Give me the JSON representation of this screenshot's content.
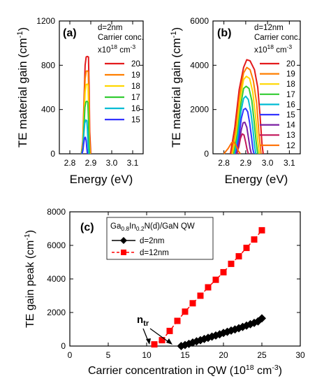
{
  "chart_data": [
    {
      "panel": "(a)",
      "type": "line",
      "xlabel": "Energy (eV)",
      "ylabel": "TE material gain (cm-1)",
      "ylabel_main": "TE material gain (cm",
      "ylabel_sup": "-1",
      "ylabel_close": ")",
      "xlim": [
        2.75,
        3.15
      ],
      "ylim": [
        0,
        1200
      ],
      "xticks": [
        "2.8",
        "2.9",
        "3.0",
        "3.1"
      ],
      "yticks": [
        "0",
        "400",
        "800",
        "1200"
      ],
      "annotation": {
        "line1": "d=2nm",
        "line2": "Carrier conc.",
        "line3_base": "x10",
        "line3_exp1": "18",
        "line3_mid": " cm",
        "line3_exp2": "-3"
      },
      "series": [
        {
          "name": "20",
          "color": "#e31a1c",
          "x": [
            2.855,
            2.862,
            2.868,
            2.873,
            2.878,
            2.883,
            2.889,
            2.892,
            2.895,
            2.9
          ],
          "y": [
            0,
            120,
            500,
            800,
            875,
            880,
            875,
            600,
            200,
            0
          ]
        },
        {
          "name": "19",
          "color": "#ff7f00",
          "x": [
            2.855,
            2.862,
            2.868,
            2.873,
            2.878,
            2.883,
            2.888,
            2.891,
            2.894,
            2.898
          ],
          "y": [
            0,
            100,
            430,
            680,
            745,
            750,
            740,
            500,
            150,
            0
          ]
        },
        {
          "name": "18",
          "color": "#ffd700",
          "x": [
            2.856,
            2.862,
            2.868,
            2.873,
            2.878,
            2.883,
            2.887,
            2.89,
            2.893,
            2.896
          ],
          "y": [
            0,
            80,
            360,
            560,
            625,
            630,
            620,
            400,
            100,
            0
          ]
        },
        {
          "name": "17",
          "color": "#33cc33",
          "x": [
            2.856,
            2.862,
            2.868,
            2.872,
            2.877,
            2.882,
            2.886,
            2.889,
            2.892,
            2.894
          ],
          "y": [
            0,
            60,
            260,
            420,
            470,
            475,
            465,
            300,
            80,
            0
          ]
        },
        {
          "name": "16",
          "color": "#00bcd4",
          "x": [
            2.857,
            2.862,
            2.867,
            2.871,
            2.876,
            2.881,
            2.884,
            2.887,
            2.889
          ],
          "y": [
            0,
            40,
            180,
            275,
            305,
            300,
            220,
            80,
            0
          ]
        },
        {
          "name": "15",
          "color": "#3333ff",
          "x": [
            2.858,
            2.862,
            2.866,
            2.87,
            2.874,
            2.878,
            2.881,
            2.884
          ],
          "y": [
            0,
            25,
            90,
            140,
            150,
            120,
            50,
            0
          ]
        }
      ]
    },
    {
      "panel": "(b)",
      "type": "line",
      "xlabel": "Energy (eV)",
      "ylabel": "TE material gain (cm-1)",
      "ylabel_main": "TE material gain (cm",
      "ylabel_sup": "-1",
      "ylabel_close": ")",
      "xlim": [
        2.75,
        3.15
      ],
      "ylim": [
        0,
        6000
      ],
      "xticks": [
        "2.8",
        "2.9",
        "3.0",
        "3.1"
      ],
      "yticks": [
        "0",
        "2000",
        "4000",
        "6000"
      ],
      "annotation": {
        "line1": "d=12nm",
        "line2": "Carrier conc.",
        "line3_base": "x10",
        "line3_exp1": "18",
        "line3_mid": " cm",
        "line3_exp2": "-3"
      },
      "series": [
        {
          "name": "20",
          "color": "#e31a1c",
          "x": [
            2.83,
            2.85,
            2.87,
            2.89,
            2.905,
            2.92,
            2.94,
            2.955,
            2.965,
            2.975,
            2.98
          ],
          "y": [
            0,
            1200,
            2900,
            3900,
            4250,
            4200,
            3800,
            3000,
            1800,
            400,
            0
          ]
        },
        {
          "name": "19",
          "color": "#ff7f00",
          "x": [
            2.835,
            2.855,
            2.873,
            2.89,
            2.905,
            2.92,
            2.935,
            2.95,
            2.96,
            2.97
          ],
          "y": [
            0,
            1100,
            2700,
            3650,
            3900,
            3800,
            3300,
            2300,
            1000,
            0
          ]
        },
        {
          "name": "18",
          "color": "#ffd700",
          "x": [
            2.84,
            2.858,
            2.875,
            2.89,
            2.903,
            2.918,
            2.932,
            2.944,
            2.955,
            2.962
          ],
          "y": [
            0,
            1000,
            2500,
            3350,
            3500,
            3400,
            2800,
            1800,
            600,
            0
          ]
        },
        {
          "name": "17",
          "color": "#33cc33",
          "x": [
            2.845,
            2.862,
            2.877,
            2.89,
            2.902,
            2.915,
            2.928,
            2.938,
            2.948,
            2.955
          ],
          "y": [
            0,
            900,
            2200,
            2950,
            3050,
            2950,
            2400,
            1500,
            500,
            0
          ]
        },
        {
          "name": "16",
          "color": "#00bcd4",
          "x": [
            2.85,
            2.865,
            2.878,
            2.89,
            2.9,
            2.912,
            2.923,
            2.932,
            2.94,
            2.946
          ],
          "y": [
            0,
            800,
            1900,
            2500,
            2600,
            2450,
            1900,
            1200,
            400,
            0
          ]
        },
        {
          "name": "15",
          "color": "#3333ff",
          "x": [
            2.855,
            2.868,
            2.88,
            2.89,
            2.899,
            2.909,
            2.918,
            2.926,
            2.933,
            2.938
          ],
          "y": [
            0,
            700,
            1600,
            2000,
            2050,
            1900,
            1400,
            800,
            200,
            0
          ]
        },
        {
          "name": "14",
          "color": "#7b1fa2",
          "x": [
            2.86,
            2.87,
            2.88,
            2.888,
            2.896,
            2.905,
            2.913,
            2.92,
            2.926
          ],
          "y": [
            0,
            500,
            1100,
            1400,
            1420,
            1200,
            700,
            250,
            0
          ]
        },
        {
          "name": "13",
          "color": "#c2185b",
          "x": [
            2.858,
            2.868,
            2.876,
            2.884,
            2.892,
            2.899,
            2.906,
            2.912
          ],
          "y": [
            0,
            300,
            700,
            900,
            850,
            550,
            200,
            0
          ]
        },
        {
          "name": "12",
          "color": "#ff6f00",
          "x": [
            2.8,
            2.82,
            2.835,
            2.845,
            2.855,
            2.865,
            2.875
          ],
          "y": [
            0,
            250,
            500,
            550,
            400,
            150,
            0
          ]
        }
      ]
    },
    {
      "panel": "(c)",
      "type": "scatter",
      "xlabel": "Carrier concentration in QW (1018 cm-3)",
      "xlabel_main": "Carrier concentration in QW (10",
      "xlabel_sup1": "18",
      "xlabel_mid": " cm",
      "xlabel_sup2": "-3",
      "xlabel_close": ")",
      "ylabel": "TE gain peak (cm-1)",
      "ylabel_main": "TE gain peak (cm",
      "ylabel_sup": "-1",
      "ylabel_close": ")",
      "xlim": [
        0,
        30
      ],
      "ylim": [
        0,
        8000
      ],
      "xticks": [
        "0",
        "5",
        "10",
        "15",
        "20",
        "25",
        "30"
      ],
      "yticks": [
        "0",
        "2000",
        "4000",
        "6000",
        "8000"
      ],
      "legend_title": "Ga0.8In0.2N(d)/GaN QW",
      "legend_title_parts": {
        "a": "Ga",
        "b": "0.8",
        "c": "In",
        "d": "0.2",
        "e": "N(d)/GaN QW"
      },
      "annotation": {
        "main": "n",
        "sub": "tr"
      },
      "series": [
        {
          "name": "d=2nm",
          "color": "#000000",
          "marker": "diamond",
          "x": [
            14.5,
            15,
            15.5,
            16,
            16.5,
            17,
            17.5,
            18,
            18.5,
            19,
            19.5,
            20,
            20.5,
            21,
            21.5,
            22,
            22.5,
            23,
            23.5,
            24,
            24.5,
            25
          ],
          "y": [
            0,
            60,
            130,
            210,
            280,
            350,
            420,
            490,
            560,
            630,
            700,
            780,
            850,
            920,
            990,
            1060,
            1140,
            1220,
            1300,
            1380,
            1470,
            1650
          ]
        },
        {
          "name": "d=12nm",
          "color": "#ff0000",
          "marker": "square",
          "x": [
            11,
            12,
            13,
            14,
            15,
            16,
            17,
            18,
            19,
            20,
            21,
            22,
            23,
            24,
            25
          ],
          "y": [
            100,
            350,
            900,
            1500,
            2050,
            2550,
            3000,
            3500,
            3950,
            4400,
            4900,
            5350,
            5850,
            6350,
            6900
          ]
        }
      ]
    }
  ]
}
